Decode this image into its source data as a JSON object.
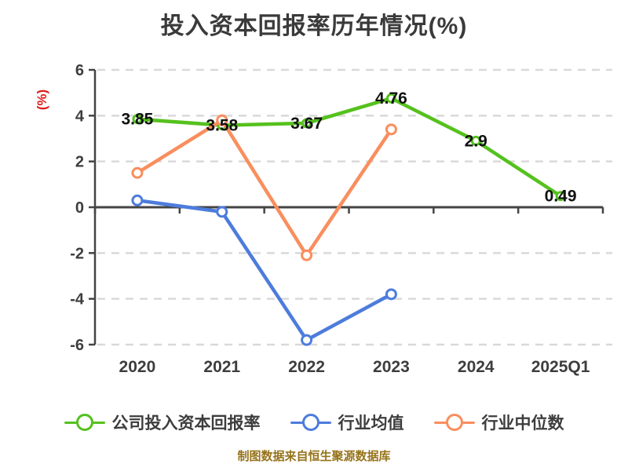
{
  "page": {
    "title": "投入资本回报率历年情况(%)",
    "footer": "制图数据来自恒生聚源数据库"
  },
  "colors": {
    "background": "#ffffff",
    "title_text": "#3a3a3a",
    "axis": "#444444",
    "gridline": "#d9d9d9",
    "tick_label": "#3d3d3d",
    "value_label": "#111111",
    "y_axis_name": "#e01a1a",
    "footer_text": "#96731a",
    "company_green": "#55c11e",
    "industry_avg_blue": "#4d7cdc",
    "industry_median_orange": "#f98e5e"
  },
  "y_axis": {
    "name": "(%)",
    "ticks": [
      6,
      4,
      2,
      0,
      -2,
      -4,
      -6
    ]
  },
  "chart_data": {
    "type": "line",
    "title": "投入资本回报率历年情况(%)",
    "xlabel": "",
    "ylabel": "(%)",
    "categories": [
      "2020",
      "2021",
      "2022",
      "2023",
      "2024",
      "2025Q1"
    ],
    "ylim": [
      -6,
      6
    ],
    "ytick_step": 2,
    "grid": "horizontal-dashed",
    "legend_position": "bottom",
    "series": [
      {
        "name": "公司投入资本回报率",
        "color": "#55c11e",
        "values": [
          3.85,
          3.58,
          3.67,
          4.76,
          2.9,
          0.49
        ],
        "data_labels": true
      },
      {
        "name": "行业均值",
        "color": "#4d7cdc",
        "values": [
          0.3,
          -0.2,
          -5.8,
          -3.8,
          null,
          null
        ],
        "data_labels": false
      },
      {
        "name": "行业中位数",
        "color": "#f98e5e",
        "values": [
          1.5,
          3.8,
          -2.1,
          3.4,
          null,
          null
        ],
        "data_labels": false
      }
    ]
  }
}
